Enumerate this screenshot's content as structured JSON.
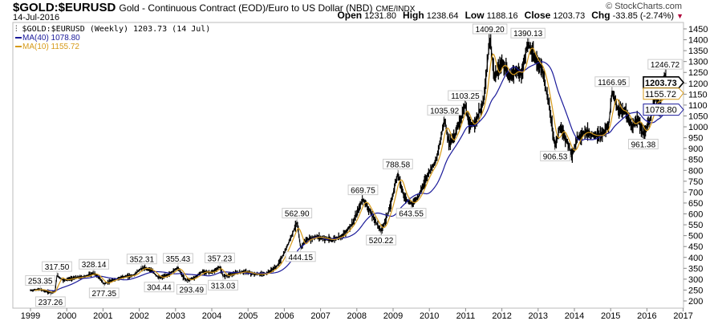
{
  "header": {
    "symbol": "$GOLD:$EURUSD",
    "description": "Gold - Continuous Contract (EOD)/Euro to US Dollar (NBD)",
    "exchange": "CME/INDX",
    "date": "14-Jul-2016",
    "brand": "© StockCharts.com",
    "open_label": "Open",
    "open": "1231.80",
    "high_label": "High",
    "high": "1238.64",
    "low_label": "Low",
    "low": "1188.16",
    "close_label": "Close",
    "close": "1203.73",
    "chg_label": "Chg",
    "chg": "-33.85 (-2.74%)",
    "chg_icon": "down-triangle"
  },
  "legend": {
    "main": "$GOLD:$EURUSD (Weekly) 1203.73 (14 Jul)",
    "ma40": "MA(40) 1078.80",
    "ma10": "MA(10) 1155.72"
  },
  "colors": {
    "price": "#000000",
    "ma40": "#1a1a9a",
    "ma10": "#d69a1a",
    "flag_close": "#000000"
  },
  "chart_data": {
    "type": "line",
    "title": "$GOLD:$EURUSD (Weekly)",
    "xlim": [
      1999,
      2017
    ],
    "ylim": [
      180,
      1480
    ],
    "x_ticks": [
      "1999",
      "2000",
      "2001",
      "2002",
      "2003",
      "2004",
      "2005",
      "2006",
      "2007",
      "2008",
      "2009",
      "2010",
      "2011",
      "2012",
      "2013",
      "2014",
      "2015",
      "2016",
      "2017"
    ],
    "y_ticks": [
      200,
      250,
      300,
      350,
      400,
      450,
      500,
      550,
      600,
      650,
      700,
      750,
      800,
      850,
      900,
      950,
      1000,
      1050,
      1100,
      1150,
      1200,
      1250,
      1300,
      1350,
      1400,
      1450
    ],
    "price": [
      [
        1999.0,
        248
      ],
      [
        1999.27,
        253.35
      ],
      [
        1999.55,
        237.26
      ],
      [
        1999.68,
        245
      ],
      [
        1999.73,
        317.5
      ],
      [
        1999.9,
        295
      ],
      [
        2000.2,
        305
      ],
      [
        2000.5,
        312
      ],
      [
        2000.75,
        328.14
      ],
      [
        2000.9,
        305
      ],
      [
        2001.03,
        277.35
      ],
      [
        2001.3,
        298
      ],
      [
        2001.6,
        312
      ],
      [
        2001.85,
        318
      ],
      [
        2002.07,
        352.31
      ],
      [
        2002.3,
        345
      ],
      [
        2002.55,
        304.44
      ],
      [
        2002.8,
        320
      ],
      [
        2003.07,
        355.43
      ],
      [
        2003.2,
        312
      ],
      [
        2003.31,
        293.49
      ],
      [
        2003.5,
        305
      ],
      [
        2003.75,
        335
      ],
      [
        2004.0,
        330
      ],
      [
        2004.22,
        357.23
      ],
      [
        2004.31,
        313.03
      ],
      [
        2004.6,
        325
      ],
      [
        2004.9,
        335
      ],
      [
        2005.2,
        322
      ],
      [
        2005.5,
        325
      ],
      [
        2005.8,
        360
      ],
      [
        2006.0,
        420
      ],
      [
        2006.2,
        500
      ],
      [
        2006.35,
        562.9
      ],
      [
        2006.45,
        444.15
      ],
      [
        2006.6,
        480
      ],
      [
        2006.9,
        495
      ],
      [
        2007.3,
        480
      ],
      [
        2007.6,
        500
      ],
      [
        2007.9,
        560
      ],
      [
        2008.17,
        669.75
      ],
      [
        2008.4,
        600
      ],
      [
        2008.67,
        520.22
      ],
      [
        2008.9,
        620
      ],
      [
        2009.13,
        788.58
      ],
      [
        2009.3,
        680
      ],
      [
        2009.5,
        643.55
      ],
      [
        2009.7,
        680
      ],
      [
        2009.95,
        780
      ],
      [
        2010.2,
        850
      ],
      [
        2010.42,
        1035.92
      ],
      [
        2010.55,
        920
      ],
      [
        2010.7,
        960
      ],
      [
        2010.99,
        1103.25
      ],
      [
        2011.1,
        1000
      ],
      [
        2011.3,
        1030
      ],
      [
        2011.5,
        1120
      ],
      [
        2011.67,
        1409.2
      ],
      [
        2011.8,
        1220
      ],
      [
        2012.0,
        1300
      ],
      [
        2012.2,
        1230
      ],
      [
        2012.4,
        1260
      ],
      [
        2012.55,
        1240
      ],
      [
        2012.72,
        1390.13
      ],
      [
        2012.9,
        1310
      ],
      [
        2013.1,
        1270
      ],
      [
        2013.3,
        1100
      ],
      [
        2013.47,
        906.53
      ],
      [
        2013.6,
        1000
      ],
      [
        2013.8,
        930
      ],
      [
        2013.93,
        870
      ],
      [
        2014.1,
        950
      ],
      [
        2014.3,
        980
      ],
      [
        2014.5,
        960
      ],
      [
        2014.75,
        960
      ],
      [
        2014.95,
        1010
      ],
      [
        2015.04,
        1166.95
      ],
      [
        2015.2,
        1080
      ],
      [
        2015.4,
        1070
      ],
      [
        2015.6,
        1000
      ],
      [
        2015.75,
        1040
      ],
      [
        2015.9,
        961.38
      ],
      [
        2016.1,
        1040
      ],
      [
        2016.25,
        1150
      ],
      [
        2016.35,
        1080
      ],
      [
        2016.5,
        1246.72
      ],
      [
        2016.53,
        1203.73
      ]
    ],
    "annotations": [
      {
        "x": 1999.27,
        "y": 253.35,
        "text": "253.35",
        "pos": "above"
      },
      {
        "x": 1999.55,
        "y": 237.26,
        "text": "237.26",
        "pos": "below"
      },
      {
        "x": 1999.73,
        "y": 317.5,
        "text": "317.50",
        "pos": "above"
      },
      {
        "x": 2000.75,
        "y": 328.14,
        "text": "328.14",
        "pos": "above"
      },
      {
        "x": 2001.03,
        "y": 277.35,
        "text": "277.35",
        "pos": "below"
      },
      {
        "x": 2002.07,
        "y": 352.31,
        "text": "352.31",
        "pos": "above"
      },
      {
        "x": 2002.55,
        "y": 304.44,
        "text": "304.44",
        "pos": "below"
      },
      {
        "x": 2003.07,
        "y": 355.43,
        "text": "355.43",
        "pos": "above"
      },
      {
        "x": 2003.31,
        "y": 293.49,
        "text": "293.49",
        "pos": "below"
      },
      {
        "x": 2004.22,
        "y": 357.23,
        "text": "357.23",
        "pos": "above"
      },
      {
        "x": 2004.31,
        "y": 313.03,
        "text": "313.03",
        "pos": "below"
      },
      {
        "x": 2006.35,
        "y": 562.9,
        "text": "562.90",
        "pos": "above"
      },
      {
        "x": 2006.45,
        "y": 444.15,
        "text": "444.15",
        "pos": "below"
      },
      {
        "x": 2008.17,
        "y": 669.75,
        "text": "669.75",
        "pos": "above"
      },
      {
        "x": 2008.67,
        "y": 520.22,
        "text": "520.22",
        "pos": "below"
      },
      {
        "x": 2009.13,
        "y": 788.58,
        "text": "788.58",
        "pos": "above"
      },
      {
        "x": 2009.5,
        "y": 643.55,
        "text": "643.55",
        "pos": "below"
      },
      {
        "x": 2010.42,
        "y": 1035.92,
        "text": "1035.92",
        "pos": "above"
      },
      {
        "x": 2010.99,
        "y": 1103.25,
        "text": "1103.25",
        "pos": "above"
      },
      {
        "x": 2011.67,
        "y": 1409.2,
        "text": "1409.20",
        "pos": "above"
      },
      {
        "x": 2012.72,
        "y": 1390.13,
        "text": "1390.13",
        "pos": "above"
      },
      {
        "x": 2013.47,
        "y": 906.53,
        "text": "906.53",
        "pos": "below"
      },
      {
        "x": 2015.04,
        "y": 1166.95,
        "text": "1166.95",
        "pos": "above"
      },
      {
        "x": 2015.9,
        "y": 961.38,
        "text": "961.38",
        "pos": "below"
      },
      {
        "x": 2016.5,
        "y": 1246.72,
        "text": "1246.72",
        "pos": "above"
      }
    ],
    "flags": [
      {
        "name": "close",
        "value": 1203.73,
        "text": "1203.73",
        "color": "#000000",
        "bold": true
      },
      {
        "name": "ma10",
        "value": 1155.72,
        "text": "1155.72",
        "color": "#d69a1a",
        "bold": false
      },
      {
        "name": "ma40",
        "value": 1078.8,
        "text": "1078.80",
        "color": "#1a1a9a",
        "bold": false
      }
    ],
    "series": [
      {
        "name": "MA(40)",
        "period": 40,
        "last": 1078.8
      },
      {
        "name": "MA(10)",
        "period": 10,
        "last": 1155.72
      }
    ],
    "grid": false
  }
}
